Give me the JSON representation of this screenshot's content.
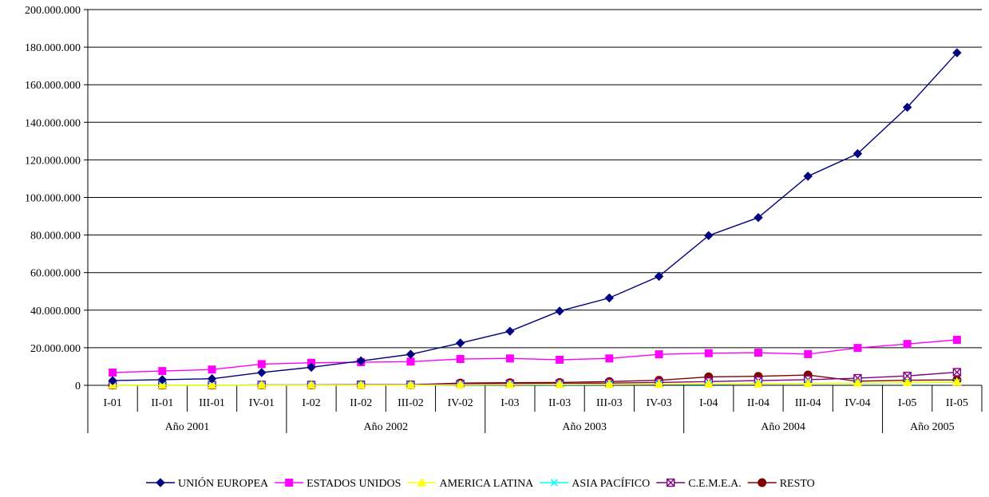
{
  "chart_data": {
    "type": "line",
    "title": "",
    "xlabel": "",
    "ylabel": "",
    "ylim": [
      0,
      200000000
    ],
    "yticks": [
      0,
      20000000,
      40000000,
      60000000,
      80000000,
      100000000,
      120000000,
      140000000,
      160000000,
      180000000,
      200000000
    ],
    "ytick_labels": [
      "0",
      "20.000.000",
      "40.000.000",
      "60.000.000",
      "80.000.000",
      "100.000.000",
      "120.000.000",
      "140.000.000",
      "160.000.000",
      "180.000.000",
      "200.000.000"
    ],
    "grid": "horizontal",
    "legend_position": "bottom",
    "categories": [
      "I-01",
      "II-01",
      "III-01",
      "IV-01",
      "I-02",
      "II-02",
      "III-02",
      "IV-02",
      "I-03",
      "II-03",
      "III-03",
      "IV-03",
      "I-04",
      "II-04",
      "III-04",
      "IV-04",
      "I-05",
      "II-05"
    ],
    "groups": [
      {
        "label": "Año 2001",
        "span": 4
      },
      {
        "label": "Año 2002",
        "span": 4
      },
      {
        "label": "Año 2003",
        "span": 4
      },
      {
        "label": "Año 2004",
        "span": 4
      },
      {
        "label": "Año 2005",
        "span": 2
      }
    ],
    "series": [
      {
        "name": "UNIÓN EUROPEA",
        "color": "#000080",
        "marker": "diamond",
        "values": [
          2500000,
          3000000,
          3500000,
          6800000,
          9600000,
          13000000,
          16500000,
          22500000,
          28800000,
          39500000,
          46500000,
          58000000,
          79700000,
          89300000,
          111300000,
          123300000,
          148000000,
          177000000
        ]
      },
      {
        "name": "ESTADOS UNIDOS",
        "color": "#ff00ff",
        "marker": "square",
        "values": [
          6800000,
          7600000,
          8400000,
          11300000,
          12000000,
          12300000,
          12600000,
          14000000,
          14300000,
          13600000,
          14300000,
          16500000,
          17100000,
          17400000,
          16600000,
          19900000,
          22000000,
          24200000
        ]
      },
      {
        "name": "AMERICA LATINA",
        "color": "#ffff00",
        "marker": "triangle",
        "values": [
          50000,
          50000,
          50000,
          100000,
          100000,
          100000,
          100000,
          300000,
          400000,
          500000,
          500000,
          600000,
          700000,
          800000,
          1000000,
          1200000,
          1500000,
          1800000
        ]
      },
      {
        "name": "ASIA PACÍFICO",
        "color": "#00ffff",
        "marker": "x",
        "values": [
          50000,
          50000,
          50000,
          50000,
          50000,
          100000,
          100000,
          200000,
          300000,
          300000,
          400000,
          500000,
          500000,
          700000,
          900000,
          1100000,
          1400000,
          1600000
        ]
      },
      {
        "name": "C.E.M.E.A.",
        "color": "#800080",
        "marker": "xsquare",
        "values": [
          100000,
          100000,
          100000,
          200000,
          200000,
          300000,
          300000,
          700000,
          900000,
          1000000,
          1200000,
          1500000,
          2000000,
          2500000,
          3000000,
          3800000,
          5000000,
          7000000
        ]
      },
      {
        "name": "RESTO",
        "color": "#800000",
        "marker": "circle",
        "values": [
          100000,
          100000,
          100000,
          200000,
          200000,
          300000,
          300000,
          1200000,
          1400000,
          1500000,
          2000000,
          2700000,
          4500000,
          4800000,
          5500000,
          2200000,
          2700000,
          2900000
        ]
      }
    ]
  }
}
